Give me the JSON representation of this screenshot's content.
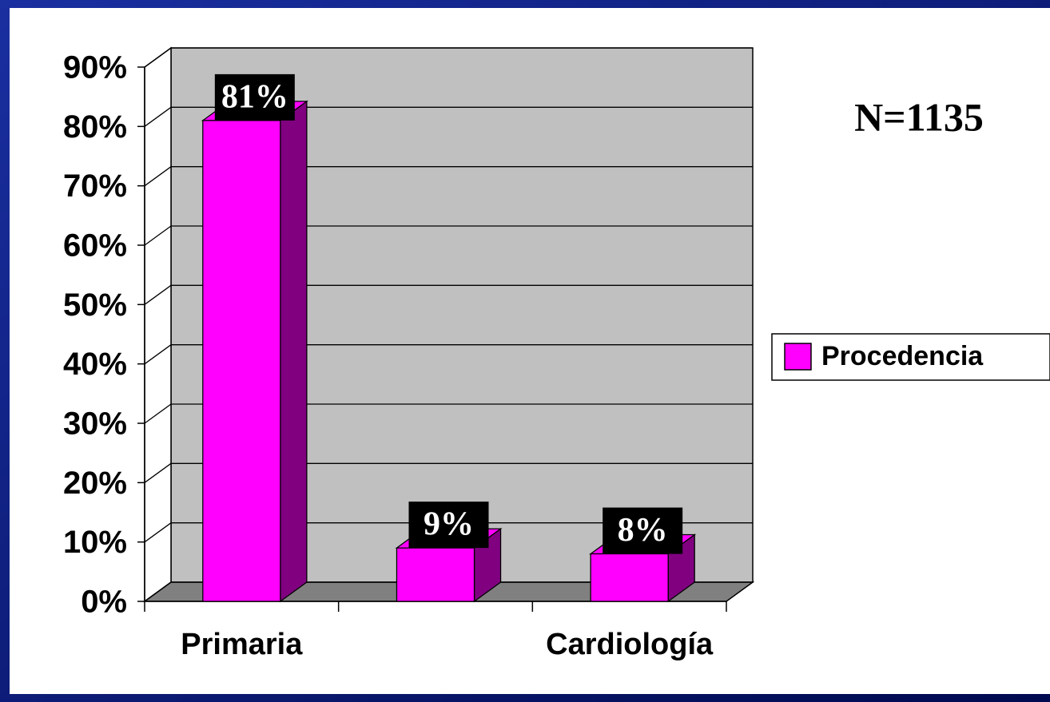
{
  "chart_data": {
    "type": "bar3d",
    "categories": [
      "Primaria",
      null,
      "Cardiología"
    ],
    "series": [
      {
        "name": "Procedencia",
        "color": "#ff00ff",
        "values": [
          81,
          9,
          8
        ],
        "value_labels": [
          "81%",
          "9%",
          "8%"
        ]
      }
    ],
    "ylim": [
      0,
      90
    ],
    "yticks": [
      {
        "value": 0,
        "label": "0%"
      },
      {
        "value": 10,
        "label": "10%"
      },
      {
        "value": 20,
        "label": "20%"
      },
      {
        "value": 30,
        "label": "30%"
      },
      {
        "value": 40,
        "label": "40%"
      },
      {
        "value": 50,
        "label": "50%"
      },
      {
        "value": 60,
        "label": "60%"
      },
      {
        "value": 70,
        "label": "70%"
      },
      {
        "value": 80,
        "label": "80%"
      },
      {
        "value": 90,
        "label": "90%"
      }
    ],
    "grid": true,
    "legend": "right",
    "annotations": [
      "N=1135"
    ]
  }
}
